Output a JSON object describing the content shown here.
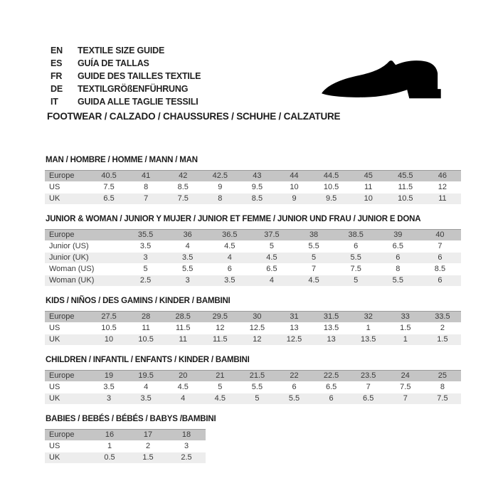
{
  "header": {
    "languages": [
      {
        "code": "EN",
        "label": "TEXTILE SIZE GUIDE"
      },
      {
        "code": "ES",
        "label": "GUÍA DE TALLAS"
      },
      {
        "code": "FR",
        "label": "GUIDE DES TAILLES TEXTILE"
      },
      {
        "code": "DE",
        "label": "TEXTILGRÖßENFÜHRUNG"
      },
      {
        "code": "IT",
        "label": "GUIDA ALLE TAGLIE TESSILI"
      }
    ],
    "category_line": "FOOTWEAR / CALZADO / CHAUSSURES / SCHUHE / CALZATURE",
    "shoe_icon": "shoe-silhouette-icon"
  },
  "tables": [
    {
      "title": "MAN / HOMBRE / HOMME / MANN / MAN",
      "rows": [
        {
          "label": "Europe",
          "values": [
            "40.5",
            "41",
            "42",
            "42.5",
            "43",
            "44",
            "44.5",
            "45",
            "45.5",
            "46"
          ]
        },
        {
          "label": "US",
          "values": [
            "7.5",
            "8",
            "8.5",
            "9",
            "9.5",
            "10",
            "10.5",
            "11",
            "11.5",
            "12"
          ]
        },
        {
          "label": "UK",
          "values": [
            "6.5",
            "7",
            "7.5",
            "8",
            "8.5",
            "9",
            "9.5",
            "10",
            "10.5",
            "11"
          ]
        }
      ]
    },
    {
      "title": "JUNIOR & WOMAN / JUNIOR Y MUJER / JUNIOR ET FEMME / JUNIOR UND FRAU / JUNIOR E DONA",
      "rows": [
        {
          "label": "Europe",
          "values": [
            "35.5",
            "36",
            "36.5",
            "37.5",
            "38",
            "38.5",
            "39",
            "40"
          ]
        },
        {
          "label": "Junior (US)",
          "values": [
            "3.5",
            "4",
            "4.5",
            "5",
            "5.5",
            "6",
            "6.5",
            "7"
          ]
        },
        {
          "label": "Junior (UK)",
          "values": [
            "3",
            "3.5",
            "4",
            "4.5",
            "5",
            "5.5",
            "6",
            "6"
          ]
        },
        {
          "label": "Woman (US)",
          "values": [
            "5",
            "5.5",
            "6",
            "6.5",
            "7",
            "7.5",
            "8",
            "8.5"
          ]
        },
        {
          "label": "Woman (UK)",
          "values": [
            "2.5",
            "3",
            "3.5",
            "4",
            "4.5",
            "5",
            "5.5",
            "6"
          ]
        }
      ]
    },
    {
      "title": "KIDS / NIÑOS / DES GAMINS / KINDER / BAMBINI",
      "rows": [
        {
          "label": "Europe",
          "values": [
            "27.5",
            "28",
            "28.5",
            "29.5",
            "30",
            "31",
            "31.5",
            "32",
            "33",
            "33.5"
          ]
        },
        {
          "label": "US",
          "values": [
            "10.5",
            "11",
            "11.5",
            "12",
            "12.5",
            "13",
            "13.5",
            "1",
            "1.5",
            "2"
          ]
        },
        {
          "label": "UK",
          "values": [
            "10",
            "10.5",
            "11",
            "11.5",
            "12",
            "12.5",
            "13",
            "13.5",
            "1",
            "1.5"
          ]
        }
      ]
    },
    {
      "title": "CHILDREN / INFANTIL / ENFANTS / KINDER / BAMBINI",
      "rows": [
        {
          "label": "Europe",
          "values": [
            "19",
            "19.5",
            "20",
            "21",
            "21.5",
            "22",
            "22.5",
            "23.5",
            "24",
            "25"
          ]
        },
        {
          "label": "US",
          "values": [
            "3.5",
            "4",
            "4.5",
            "5",
            "5.5",
            "6",
            "6.5",
            "7",
            "7.5",
            "8"
          ]
        },
        {
          "label": "UK",
          "values": [
            "3",
            "3.5",
            "4",
            "4.5",
            "5",
            "5.5",
            "6",
            "6.5",
            "7",
            "7.5"
          ]
        }
      ]
    },
    {
      "title": "BABIES / BEBÉS / BÉBÉS / BABYS /BAMBINI",
      "rows": [
        {
          "label": "Europe",
          "values": [
            "16",
            "17",
            "18"
          ]
        },
        {
          "label": "US",
          "values": [
            "1",
            "2",
            "3"
          ]
        },
        {
          "label": "UK",
          "values": [
            "0.5",
            "1.5",
            "2.5"
          ]
        }
      ]
    }
  ],
  "colors": {
    "header_row_bg": "#c5c5c5",
    "header_row_border": "#9b9b9b",
    "alt_row_bg": "#ededed",
    "text": "#3a3a3a",
    "shoe": "#000000"
  }
}
